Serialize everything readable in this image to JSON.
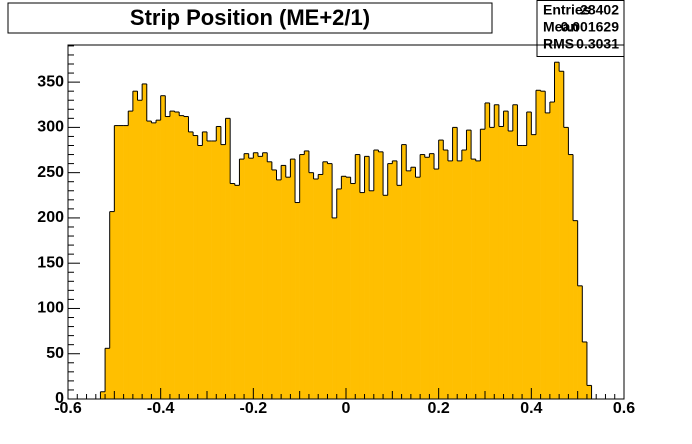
{
  "chart_data": {
    "type": "histogram",
    "title": "Strip Position (ME+2/1)",
    "stats": [
      {
        "label": "Entries",
        "value": 28402
      },
      {
        "label": "Mean",
        "value": 0.001629
      },
      {
        "label": "RMS",
        "value": 0.3031
      }
    ],
    "bins": [
      -0.53,
      -0.52,
      -0.51,
      -0.5,
      -0.49,
      -0.48,
      -0.47,
      -0.46,
      -0.45,
      -0.44,
      -0.43,
      -0.42,
      -0.41,
      -0.4,
      -0.39,
      -0.38,
      -0.37,
      -0.36,
      -0.35,
      -0.34,
      -0.33,
      -0.32,
      -0.31,
      -0.3,
      -0.29,
      -0.28,
      -0.27,
      -0.26,
      -0.25,
      -0.24,
      -0.23,
      -0.22,
      -0.21,
      -0.2,
      -0.19,
      -0.18,
      -0.17,
      -0.16,
      -0.15,
      -0.14,
      -0.13,
      -0.12,
      -0.11,
      -0.1,
      -0.09,
      -0.08,
      -0.07,
      -0.06,
      -0.05,
      -0.04,
      -0.03,
      -0.02,
      -0.01,
      0,
      0.01,
      0.02,
      0.03,
      0.04,
      0.05,
      0.06,
      0.07,
      0.08,
      0.09,
      0.1,
      0.11,
      0.12,
      0.13,
      0.14,
      0.15,
      0.16,
      0.17,
      0.18,
      0.19,
      0.2,
      0.21,
      0.22,
      0.23,
      0.24,
      0.25,
      0.26,
      0.27,
      0.28,
      0.29,
      0.3,
      0.31,
      0.32,
      0.33,
      0.34,
      0.35,
      0.36,
      0.37,
      0.38,
      0.39,
      0.4,
      0.41,
      0.42,
      0.43,
      0.44,
      0.45,
      0.46,
      0.47,
      0.48,
      0.49,
      0.5,
      0.51,
      0.52,
      0.53
    ],
    "values": [
      8,
      56,
      207,
      302,
      302,
      302,
      318,
      340,
      330,
      348,
      307,
      305,
      308,
      335,
      312,
      318,
      317,
      313,
      312,
      295,
      291,
      280,
      295,
      285,
      285,
      301,
      281,
      310,
      238,
      236,
      265,
      271,
      266,
      272,
      268,
      272,
      262,
      253,
      242,
      258,
      245,
      265,
      217,
      270,
      274,
      250,
      243,
      248,
      262,
      260,
      200,
      232,
      246,
      245,
      238,
      270,
      228,
      268,
      230,
      275,
      273,
      225,
      260,
      263,
      236,
      281,
      252,
      256,
      245,
      270,
      267,
      271,
      254,
      286,
      275,
      263,
      300,
      263,
      275,
      297,
      265,
      263,
      298,
      327,
      300,
      325,
      301,
      318,
      296,
      325,
      280,
      280,
      317,
      292,
      341,
      340,
      316,
      328,
      372,
      362,
      300,
      270,
      197,
      125,
      63,
      15
    ],
    "color": "#ffbf00",
    "xlim": [
      -0.6,
      0.6
    ],
    "xticks": [
      -0.6,
      -0.4,
      -0.2,
      0,
      0.2,
      0.4,
      0.6
    ],
    "ylim": [
      0,
      391
    ],
    "yticks": [
      0,
      50,
      100,
      150,
      200,
      250,
      300,
      350
    ]
  }
}
